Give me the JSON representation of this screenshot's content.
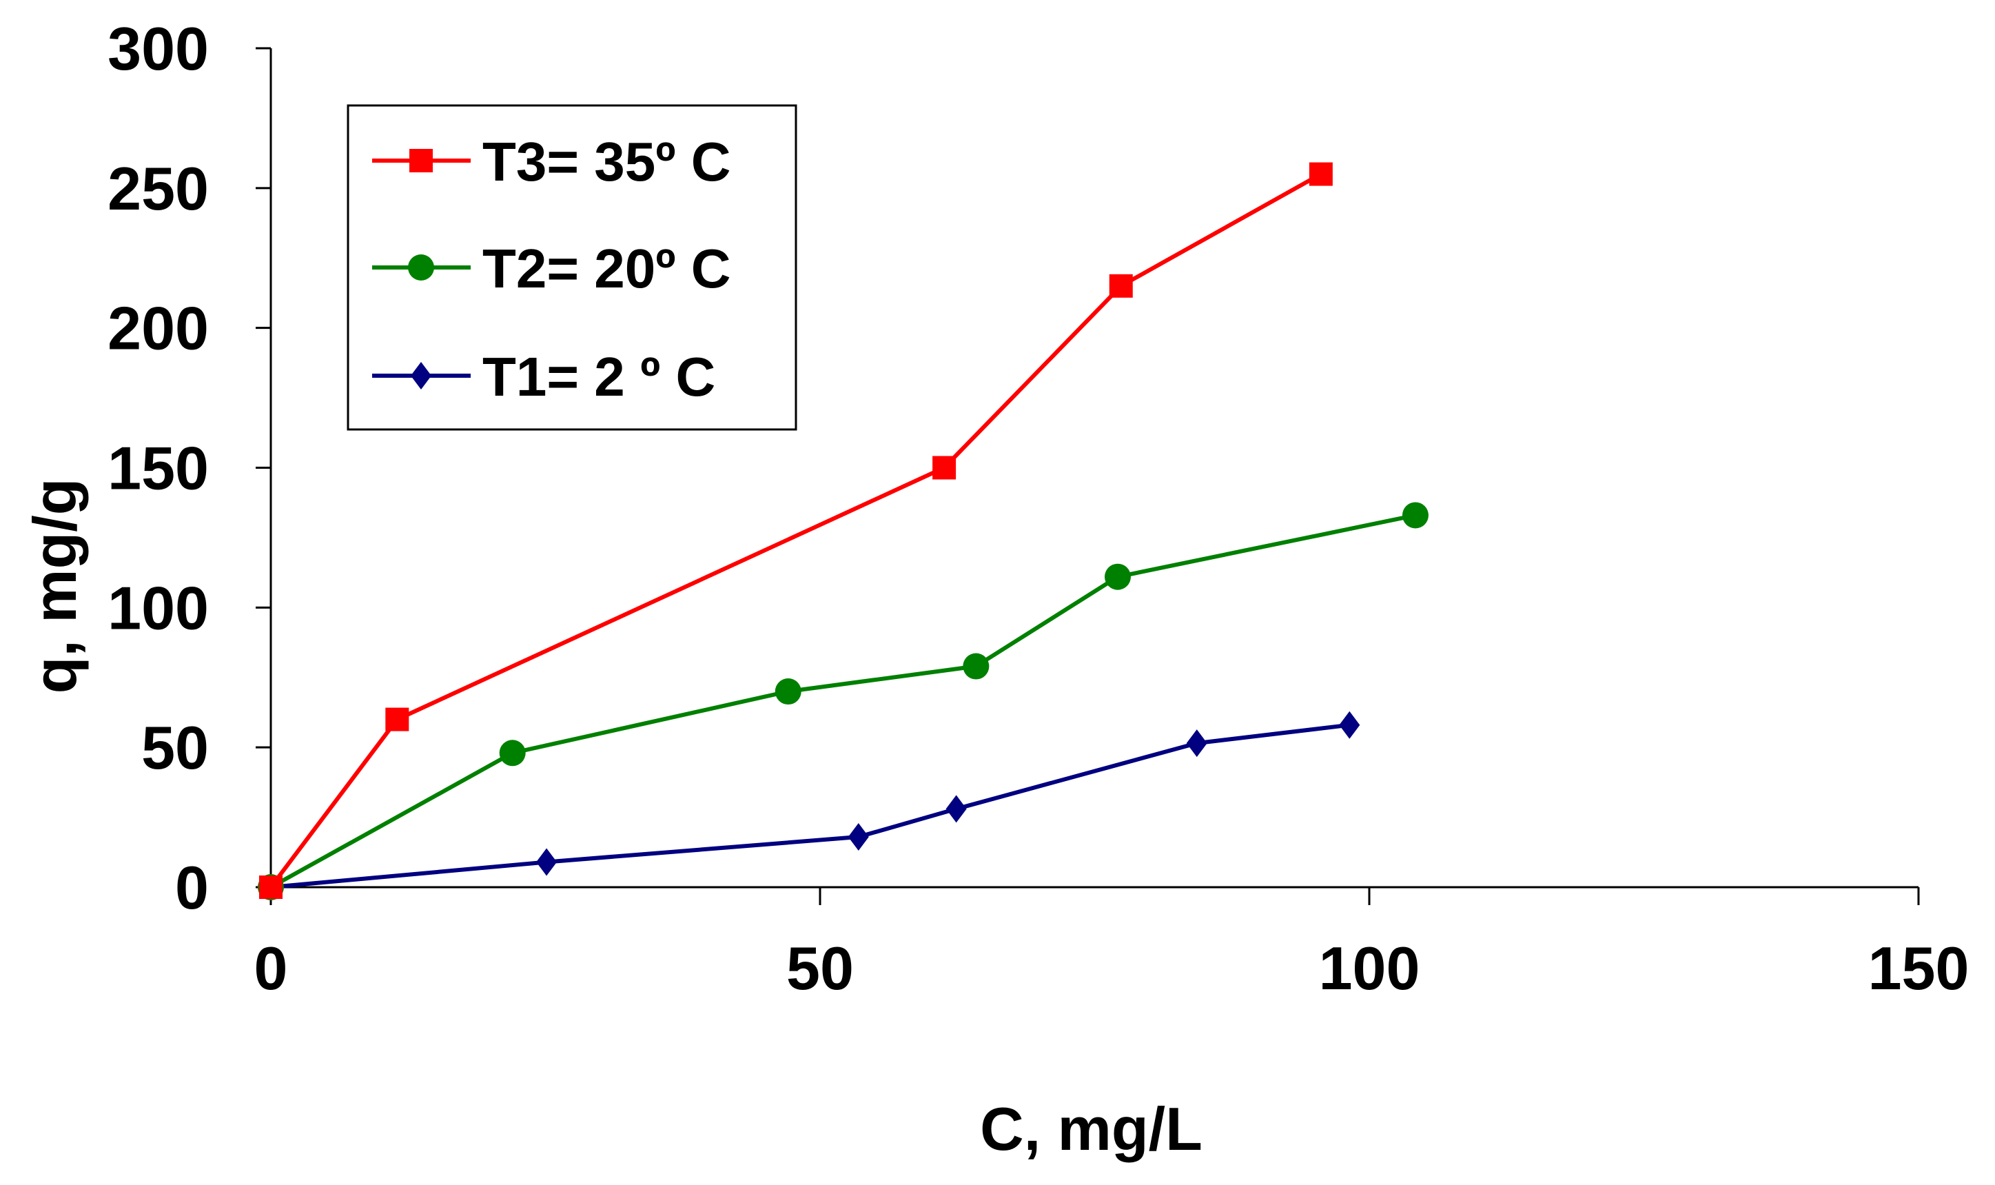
{
  "chart_data": {
    "type": "line",
    "title": "",
    "xlabel": "C, mg/L",
    "ylabel": "q, mg/g",
    "xlim": [
      0,
      150
    ],
    "ylim": [
      0,
      300
    ],
    "x_ticks": [
      0,
      50,
      100,
      150
    ],
    "y_ticks": [
      0,
      50,
      100,
      150,
      200,
      250,
      300
    ],
    "x_tick_labels": [
      "0",
      "50",
      "100",
      "150"
    ],
    "y_tick_labels": [
      "0",
      "50",
      "100",
      "150",
      "200",
      "250",
      "300"
    ],
    "grid": false,
    "legend_position": "top-left",
    "series": [
      {
        "name": "T3= 35º C",
        "color": "#ff0000",
        "marker": "square",
        "x": [
          0,
          11.5,
          61.3,
          77.4,
          95.6
        ],
        "y": [
          0,
          60,
          150,
          215,
          255
        ]
      },
      {
        "name": "T2= 20º C",
        "color": "#008000",
        "marker": "circle",
        "x": [
          0,
          22,
          47.1,
          64.2,
          77.1,
          104.2
        ],
        "y": [
          0,
          48,
          70,
          79,
          111,
          133
        ]
      },
      {
        "name": "T1= 2 º C",
        "color": "#000080",
        "marker": "diamond",
        "x": [
          0,
          25.1,
          53.5,
          62.4,
          84.3,
          98.2
        ],
        "y": [
          0,
          9,
          18,
          28,
          51.5,
          58
        ]
      }
    ]
  }
}
